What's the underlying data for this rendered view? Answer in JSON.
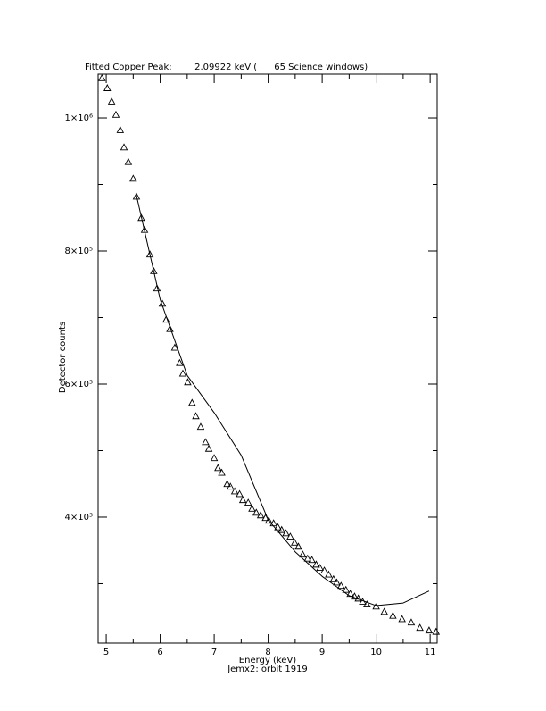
{
  "chart_data": {
    "type": "scatter",
    "title": "Fitted Copper Peak:        2.09922 keV (      65 Science windows)",
    "x_label": "Energy (keV)",
    "y_label": "Detector counts",
    "caption": "Jemx2: orbit 1919",
    "xlim": [
      4.85,
      11.13
    ],
    "ylim": [
      210700,
      1065800
    ],
    "xticks": [
      5,
      6,
      7,
      8,
      9,
      10,
      11
    ],
    "xminorticks": [
      5.5,
      6.5,
      7.5,
      8.5,
      9.5,
      10.5
    ],
    "yticks": [
      {
        "value": 400000,
        "label": "4×10⁵"
      },
      {
        "value": 600000,
        "label": "6×10⁵"
      },
      {
        "value": 800000,
        "label": "8×10⁵"
      },
      {
        "value": 1000000,
        "label": "1×10⁶"
      }
    ],
    "yminorticks": [
      300000,
      500000,
      700000,
      900000
    ],
    "color": "#000000",
    "points": {
      "x": [
        4.92,
        5.02,
        5.1,
        5.18,
        5.26,
        5.33,
        5.41,
        5.5,
        5.56,
        5.65,
        5.71,
        5.81,
        5.88,
        5.94,
        6.04,
        6.11,
        6.18,
        6.27,
        6.36,
        6.42,
        6.51,
        6.59,
        6.66,
        6.75,
        6.84,
        6.9,
        7.0,
        7.07,
        7.14,
        7.24,
        7.3,
        7.38,
        7.47,
        7.53,
        7.63,
        7.7,
        7.78,
        7.86,
        7.95,
        8.01,
        8.1,
        8.18,
        8.25,
        8.33,
        8.41,
        8.49,
        8.56,
        8.64,
        8.73,
        8.81,
        8.89,
        8.96,
        9.04,
        9.12,
        9.21,
        9.27,
        9.35,
        9.44,
        9.52,
        9.6,
        9.67,
        9.75,
        9.83,
        10.0,
        10.15,
        10.31,
        10.48,
        10.65,
        10.81,
        10.98,
        11.11
      ],
      "values": [
        1060000,
        1045000,
        1025000,
        1005000,
        982000,
        956000,
        934000,
        909000,
        882000,
        850000,
        832000,
        795000,
        770000,
        744000,
        721000,
        697000,
        683000,
        655000,
        632000,
        616000,
        603000,
        572000,
        552000,
        536000,
        513000,
        503000,
        489000,
        474000,
        467000,
        450000,
        446000,
        439000,
        435000,
        426000,
        422000,
        413000,
        407000,
        403000,
        399000,
        395000,
        391000,
        385000,
        381000,
        376000,
        371000,
        362000,
        356000,
        344000,
        338000,
        336000,
        329000,
        324000,
        320000,
        314000,
        307000,
        302000,
        297000,
        291000,
        285000,
        281000,
        278000,
        273000,
        269000,
        266000,
        258000,
        252000,
        247000,
        242000,
        234000,
        230000,
        228000
      ]
    },
    "fit": {
      "x": [
        5.55,
        6,
        6.5,
        7,
        7.5,
        8,
        8.5,
        9,
        9.5,
        10,
        10.5,
        10.98
      ],
      "values": [
        887000,
        727000,
        613000,
        557000,
        493000,
        396000,
        348000,
        311000,
        282000,
        267000,
        271000,
        289000
      ]
    }
  }
}
